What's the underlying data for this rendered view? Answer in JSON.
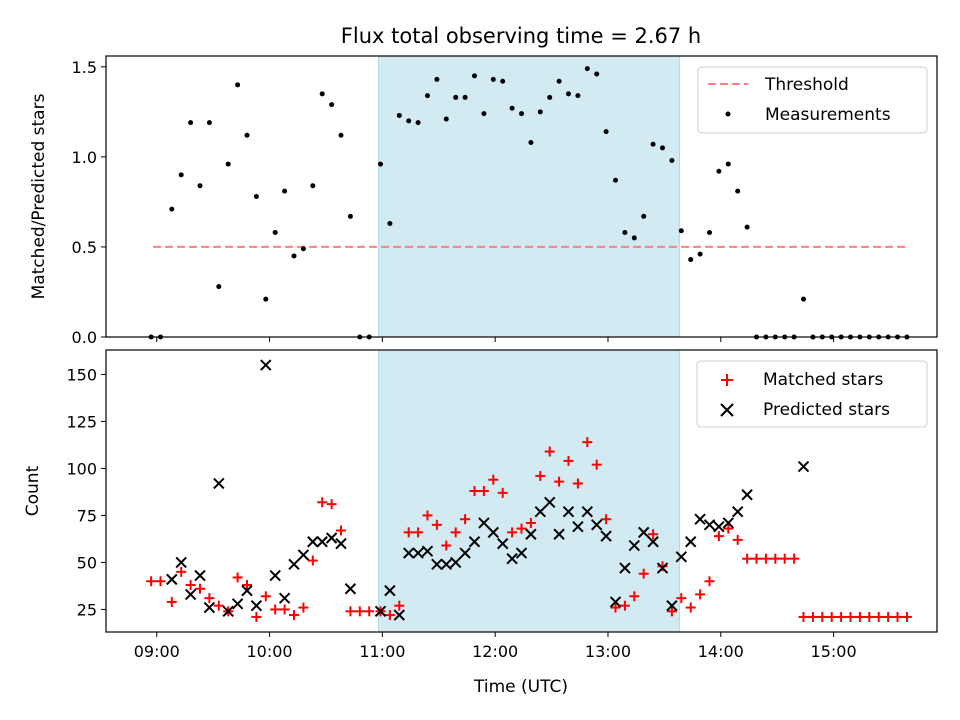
{
  "title": "Flux total observing time = 2.67 h",
  "colors": {
    "threshold": "#ff8080",
    "measurements": "#000000",
    "matched": "#ff0000",
    "predicted": "#000000",
    "shade": "#add8e6"
  },
  "chart_data": [
    {
      "type": "scatter",
      "ylabel": "Matched/Predicted stars",
      "ylim": [
        0,
        1.56
      ],
      "yticks": [
        0.0,
        0.5,
        1.0,
        1.5
      ],
      "ytick_labels": [
        "0.0",
        "0.5",
        "1.0",
        "1.5"
      ],
      "xlim": [
        "08:33",
        "15:55"
      ],
      "shaded_interval": [
        "10:58",
        "13:38"
      ],
      "legend": {
        "placement": "top-right",
        "entries": [
          "Threshold",
          "Measurements"
        ]
      },
      "threshold": {
        "name": "Threshold",
        "value": 0.5,
        "x_start": "08:58",
        "x_end": "15:40",
        "style": "dashed"
      },
      "series": [
        {
          "name": "Measurements",
          "points": [
            [
              "08:57",
              0.0
            ],
            [
              "09:02",
              0.0
            ],
            [
              "09:08",
              0.71
            ],
            [
              "09:13",
              0.9
            ],
            [
              "09:18",
              1.19
            ],
            [
              "09:23",
              0.84
            ],
            [
              "09:28",
              1.19
            ],
            [
              "09:33",
              0.28
            ],
            [
              "09:38",
              0.96
            ],
            [
              "09:43",
              1.4
            ],
            [
              "09:48",
              1.12
            ],
            [
              "09:53",
              0.78
            ],
            [
              "09:58",
              0.21
            ],
            [
              "10:03",
              0.58
            ],
            [
              "10:08",
              0.81
            ],
            [
              "10:13",
              0.45
            ],
            [
              "10:18",
              0.49
            ],
            [
              "10:23",
              0.84
            ],
            [
              "10:28",
              1.35
            ],
            [
              "10:33",
              1.29
            ],
            [
              "10:38",
              1.12
            ],
            [
              "10:43",
              0.67
            ],
            [
              "10:48",
              0.0
            ],
            [
              "10:53",
              0.0
            ],
            [
              "10:59",
              0.96
            ],
            [
              "11:04",
              0.63
            ],
            [
              "11:09",
              1.23
            ],
            [
              "11:14",
              1.2
            ],
            [
              "11:19",
              1.19
            ],
            [
              "11:24",
              1.34
            ],
            [
              "11:29",
              1.43
            ],
            [
              "11:34",
              1.21
            ],
            [
              "11:39",
              1.33
            ],
            [
              "11:44",
              1.33
            ],
            [
              "11:49",
              1.45
            ],
            [
              "11:54",
              1.24
            ],
            [
              "11:59",
              1.43
            ],
            [
              "12:04",
              1.42
            ],
            [
              "12:09",
              1.27
            ],
            [
              "12:14",
              1.24
            ],
            [
              "12:19",
              1.08
            ],
            [
              "12:24",
              1.25
            ],
            [
              "12:29",
              1.33
            ],
            [
              "12:34",
              1.42
            ],
            [
              "12:39",
              1.35
            ],
            [
              "12:44",
              1.34
            ],
            [
              "12:49",
              1.49
            ],
            [
              "12:54",
              1.46
            ],
            [
              "12:59",
              1.14
            ],
            [
              "13:04",
              0.87
            ],
            [
              "13:09",
              0.58
            ],
            [
              "13:14",
              0.55
            ],
            [
              "13:19",
              0.67
            ],
            [
              "13:24",
              1.07
            ],
            [
              "13:29",
              1.05
            ],
            [
              "13:34",
              0.98
            ],
            [
              "13:39",
              0.59
            ],
            [
              "13:44",
              0.43
            ],
            [
              "13:49",
              0.46
            ],
            [
              "13:54",
              0.58
            ],
            [
              "13:59",
              0.92
            ],
            [
              "14:04",
              0.96
            ],
            [
              "14:09",
              0.81
            ],
            [
              "14:14",
              0.61
            ],
            [
              "14:19",
              0.0
            ],
            [
              "14:24",
              0.0
            ],
            [
              "14:29",
              0.0
            ],
            [
              "14:34",
              0.0
            ],
            [
              "14:39",
              0.0
            ],
            [
              "14:44",
              0.21
            ],
            [
              "14:49",
              0.0
            ],
            [
              "14:54",
              0.0
            ],
            [
              "14:59",
              0.0
            ],
            [
              "15:04",
              0.0
            ],
            [
              "15:09",
              0.0
            ],
            [
              "15:14",
              0.0
            ],
            [
              "15:19",
              0.0
            ],
            [
              "15:24",
              0.0
            ],
            [
              "15:29",
              0.0
            ],
            [
              "15:34",
              0.0
            ],
            [
              "15:39",
              0.0
            ]
          ]
        }
      ]
    },
    {
      "type": "scatter",
      "xlabel": "Time (UTC)",
      "ylabel": "Count",
      "ylim": [
        13,
        163
      ],
      "yticks": [
        25,
        50,
        75,
        100,
        125,
        150
      ],
      "ytick_labels": [
        "25",
        "50",
        "75",
        "100",
        "125",
        "150"
      ],
      "xlim": [
        "08:33",
        "15:55"
      ],
      "xticks": [
        "09:00",
        "10:00",
        "11:00",
        "12:00",
        "13:00",
        "14:00",
        "15:00"
      ],
      "xtick_labels": [
        "09:00",
        "10:00",
        "11:00",
        "12:00",
        "13:00",
        "14:00",
        "15:00"
      ],
      "shaded_interval": [
        "10:58",
        "13:38"
      ],
      "legend": {
        "placement": "top-right",
        "entries": [
          "Matched stars",
          "Predicted stars"
        ]
      },
      "series": [
        {
          "name": "Matched stars",
          "marker": "plus",
          "points": [
            [
              "08:57",
              40
            ],
            [
              "09:02",
              40
            ],
            [
              "09:08",
              29
            ],
            [
              "09:13",
              45
            ],
            [
              "09:18",
              38
            ],
            [
              "09:23",
              36
            ],
            [
              "09:28",
              31
            ],
            [
              "09:33",
              27
            ],
            [
              "09:38",
              24
            ],
            [
              "09:43",
              42
            ],
            [
              "09:48",
              38
            ],
            [
              "09:53",
              21
            ],
            [
              "09:58",
              32
            ],
            [
              "10:03",
              25
            ],
            [
              "10:08",
              25
            ],
            [
              "10:13",
              22
            ],
            [
              "10:18",
              26
            ],
            [
              "10:23",
              51
            ],
            [
              "10:28",
              82
            ],
            [
              "10:33",
              81
            ],
            [
              "10:38",
              67
            ],
            [
              "10:43",
              24
            ],
            [
              "10:48",
              24
            ],
            [
              "10:53",
              24
            ],
            [
              "10:59",
              24
            ],
            [
              "11:04",
              22
            ],
            [
              "11:09",
              27
            ],
            [
              "11:14",
              66
            ],
            [
              "11:19",
              66
            ],
            [
              "11:24",
              75
            ],
            [
              "11:29",
              70
            ],
            [
              "11:34",
              59
            ],
            [
              "11:39",
              66
            ],
            [
              "11:44",
              73
            ],
            [
              "11:49",
              88
            ],
            [
              "11:54",
              88
            ],
            [
              "11:59",
              94
            ],
            [
              "12:04",
              87
            ],
            [
              "12:09",
              66
            ],
            [
              "12:14",
              68
            ],
            [
              "12:19",
              71
            ],
            [
              "12:24",
              96
            ],
            [
              "12:29",
              109
            ],
            [
              "12:34",
              93
            ],
            [
              "12:39",
              104
            ],
            [
              "12:44",
              92
            ],
            [
              "12:49",
              114
            ],
            [
              "12:54",
              102
            ],
            [
              "12:59",
              73
            ],
            [
              "13:04",
              26
            ],
            [
              "13:09",
              27
            ],
            [
              "13:14",
              32
            ],
            [
              "13:19",
              44
            ],
            [
              "13:24",
              65
            ],
            [
              "13:29",
              48
            ],
            [
              "13:34",
              24
            ],
            [
              "13:39",
              31
            ],
            [
              "13:44",
              26
            ],
            [
              "13:49",
              33
            ],
            [
              "13:54",
              40
            ],
            [
              "13:59",
              64
            ],
            [
              "14:04",
              68
            ],
            [
              "14:09",
              62
            ],
            [
              "14:14",
              52
            ],
            [
              "14:19",
              52
            ],
            [
              "14:24",
              52
            ],
            [
              "14:29",
              52
            ],
            [
              "14:34",
              52
            ],
            [
              "14:39",
              52
            ],
            [
              "14:44",
              21
            ],
            [
              "14:49",
              21
            ],
            [
              "14:54",
              21
            ],
            [
              "14:59",
              21
            ],
            [
              "15:04",
              21
            ],
            [
              "15:09",
              21
            ],
            [
              "15:14",
              21
            ],
            [
              "15:19",
              21
            ],
            [
              "15:24",
              21
            ],
            [
              "15:29",
              21
            ],
            [
              "15:34",
              21
            ],
            [
              "15:39",
              21
            ]
          ]
        },
        {
          "name": "Predicted stars",
          "marker": "x",
          "points": [
            [
              "09:08",
              41
            ],
            [
              "09:13",
              50
            ],
            [
              "09:18",
              33
            ],
            [
              "09:23",
              43
            ],
            [
              "09:28",
              26
            ],
            [
              "09:33",
              92
            ],
            [
              "09:38",
              24
            ],
            [
              "09:43",
              28
            ],
            [
              "09:48",
              35
            ],
            [
              "09:53",
              27
            ],
            [
              "09:58",
              155
            ],
            [
              "10:03",
              43
            ],
            [
              "10:08",
              31
            ],
            [
              "10:13",
              49
            ],
            [
              "10:18",
              54
            ],
            [
              "10:23",
              61
            ],
            [
              "10:28",
              61
            ],
            [
              "10:33",
              63
            ],
            [
              "10:38",
              60
            ],
            [
              "10:43",
              36
            ],
            [
              "10:59",
              24
            ],
            [
              "11:04",
              35
            ],
            [
              "11:09",
              22
            ],
            [
              "11:14",
              55
            ],
            [
              "11:19",
              55
            ],
            [
              "11:24",
              56
            ],
            [
              "11:29",
              49
            ],
            [
              "11:34",
              49
            ],
            [
              "11:39",
              50
            ],
            [
              "11:44",
              55
            ],
            [
              "11:49",
              61
            ],
            [
              "11:54",
              71
            ],
            [
              "11:59",
              66
            ],
            [
              "12:04",
              60
            ],
            [
              "12:09",
              52
            ],
            [
              "12:14",
              55
            ],
            [
              "12:19",
              65
            ],
            [
              "12:24",
              77
            ],
            [
              "12:29",
              82
            ],
            [
              "12:34",
              65
            ],
            [
              "12:39",
              77
            ],
            [
              "12:44",
              69
            ],
            [
              "12:49",
              77
            ],
            [
              "12:54",
              70
            ],
            [
              "12:59",
              64
            ],
            [
              "13:04",
              29
            ],
            [
              "13:09",
              47
            ],
            [
              "13:14",
              59
            ],
            [
              "13:19",
              66
            ],
            [
              "13:24",
              61
            ],
            [
              "13:29",
              47
            ],
            [
              "13:34",
              27
            ],
            [
              "13:39",
              53
            ],
            [
              "13:44",
              61
            ],
            [
              "13:49",
              73
            ],
            [
              "13:54",
              70
            ],
            [
              "13:59",
              69
            ],
            [
              "14:04",
              71
            ],
            [
              "14:09",
              77
            ],
            [
              "14:14",
              86
            ],
            [
              "14:44",
              101
            ]
          ]
        }
      ]
    }
  ]
}
